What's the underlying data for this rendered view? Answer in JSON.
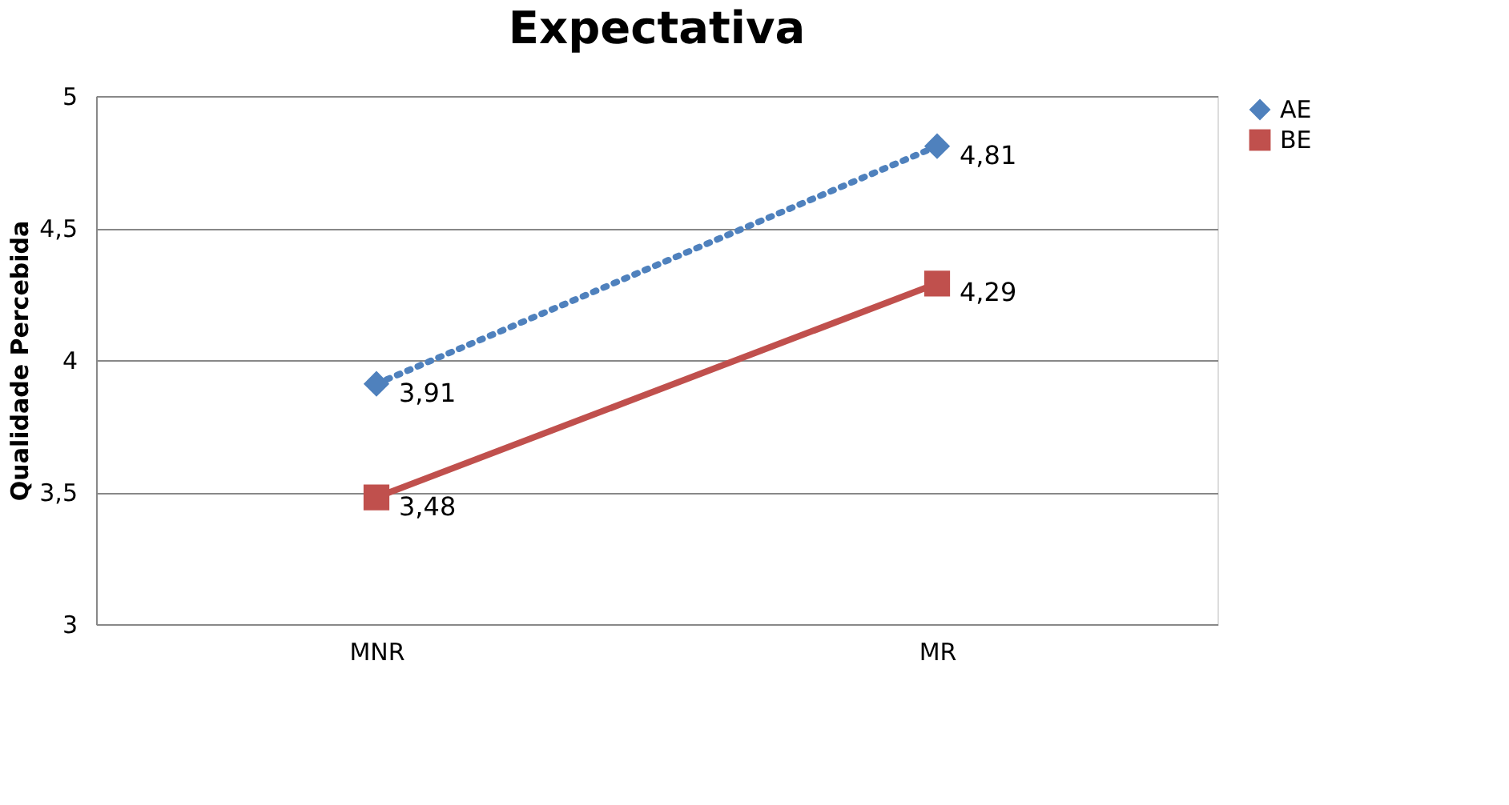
{
  "chart_data": {
    "type": "line",
    "title": "Expectativa",
    "ylabel": "Qualidade Percebida",
    "categories": [
      "MNR",
      "MR"
    ],
    "series": [
      {
        "name": "AE",
        "color": "#4f81bd",
        "values": [
          3.91,
          4.81
        ],
        "value_labels": [
          "3,91",
          "4,81"
        ],
        "marker": "diamond",
        "line_style": "dotted"
      },
      {
        "name": "BE",
        "color": "#c0504d",
        "values": [
          3.48,
          4.29
        ],
        "value_labels": [
          "3,48",
          "4,29"
        ],
        "marker": "square",
        "line_style": "solid"
      }
    ],
    "ylim": [
      3,
      5
    ],
    "yticks": [
      3,
      {
        "value": 3.5,
        "label": "3,5"
      },
      4,
      {
        "value": 4.5,
        "label": "4,5"
      },
      5
    ],
    "grid": "y",
    "legend": "right"
  }
}
